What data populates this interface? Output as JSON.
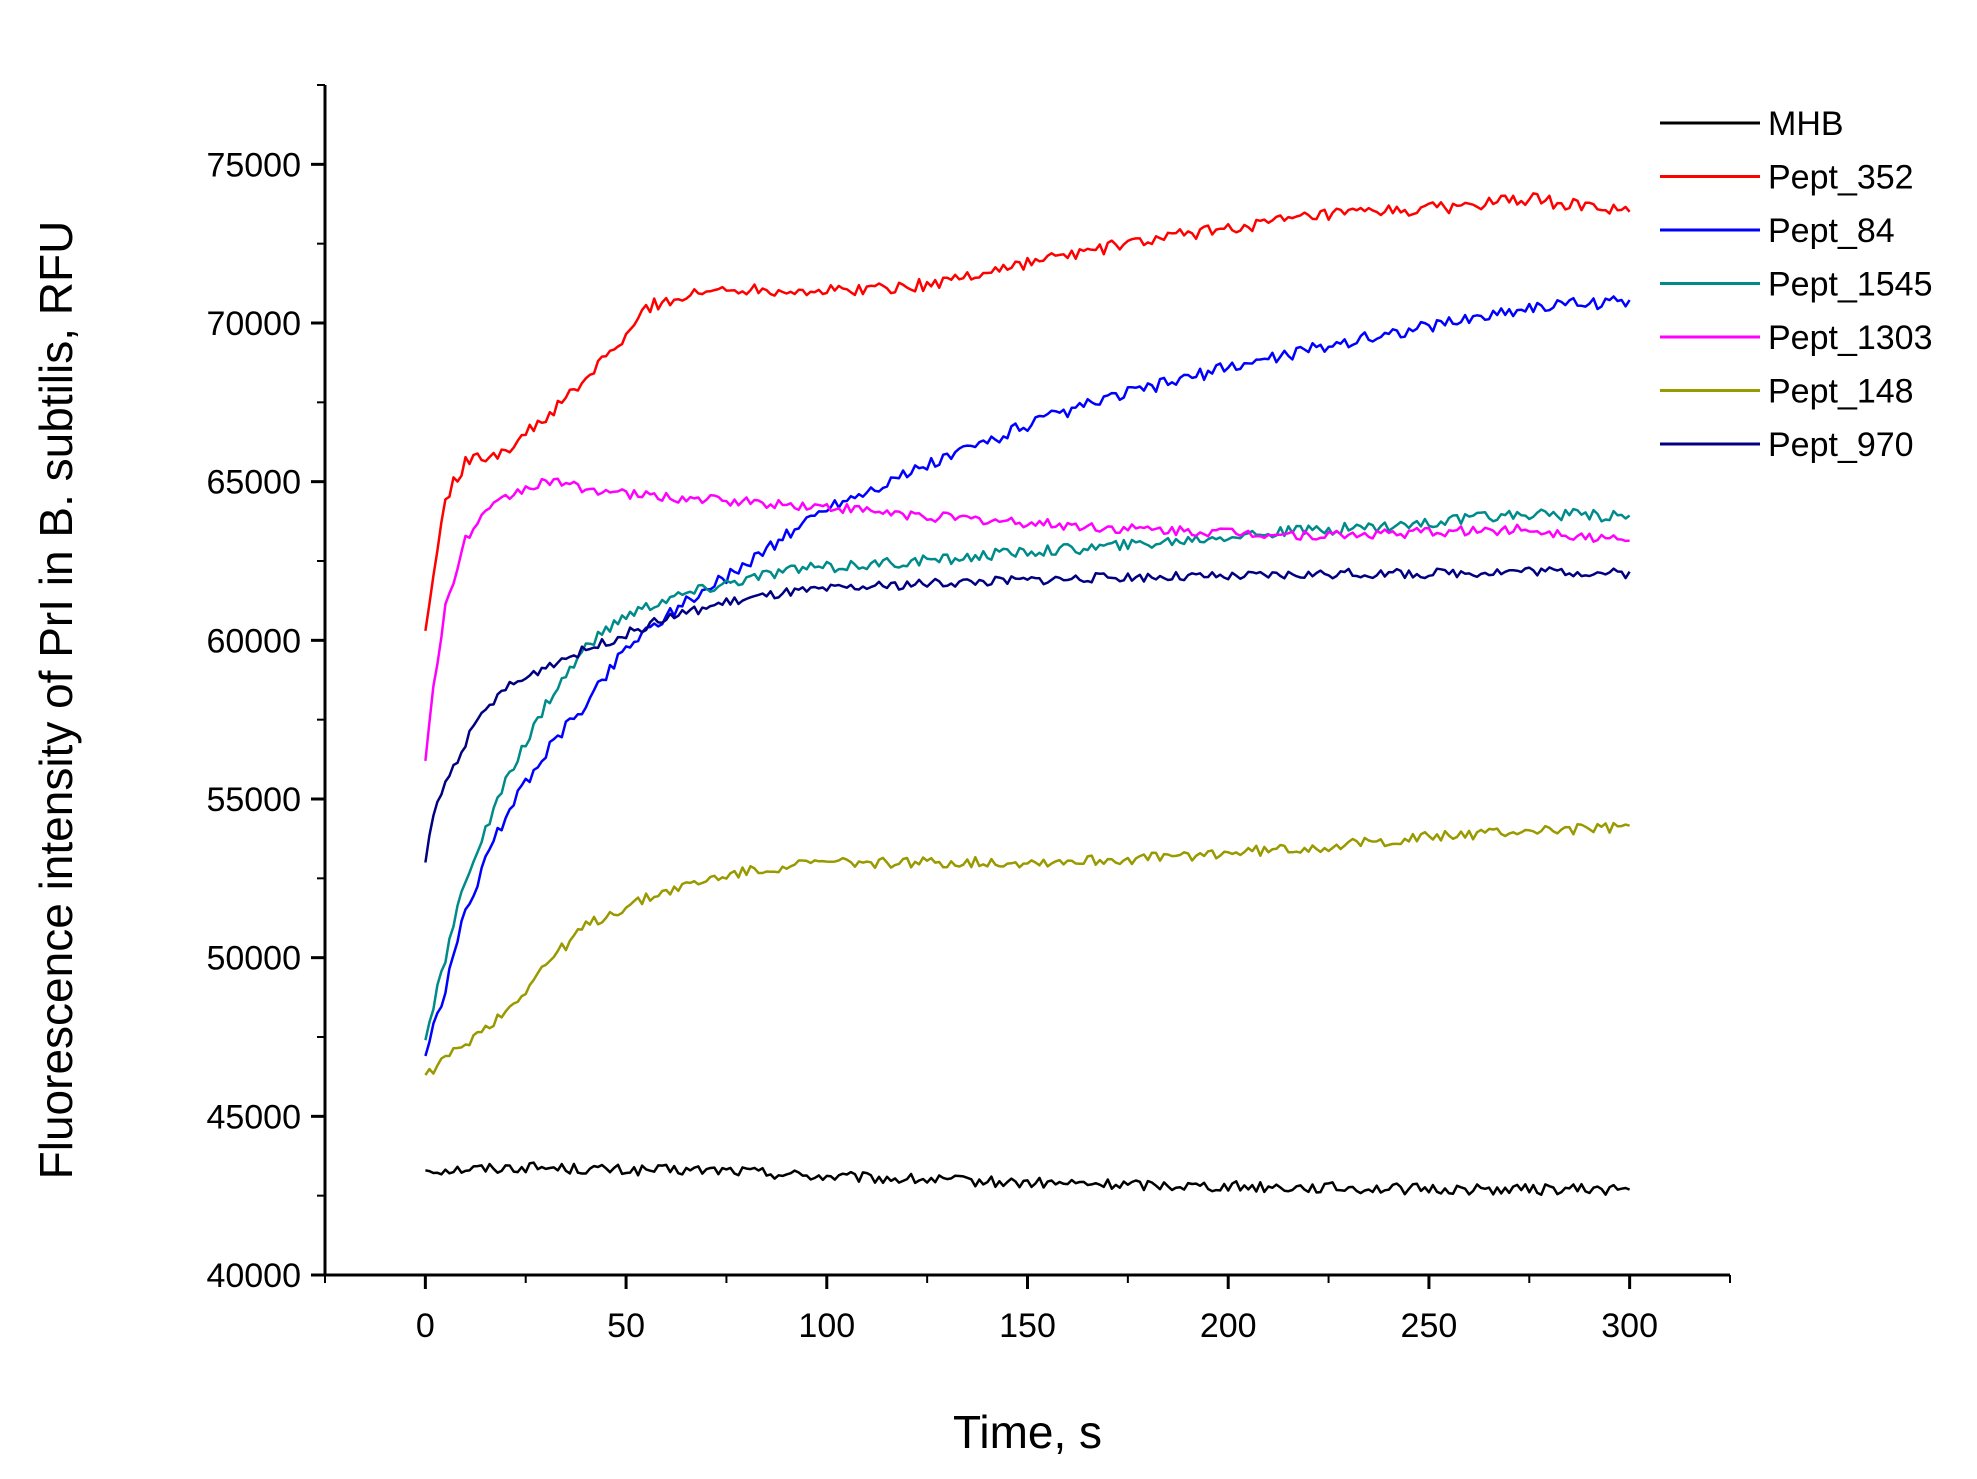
{
  "chart_data": {
    "type": "line",
    "title": "",
    "xlabel": "Time, s",
    "ylabel": "Fluorescence intensity of PrI in B. subtilis, RFU",
    "xlim": [
      -25,
      325
    ],
    "ylim": [
      40000,
      77500
    ],
    "xticks": [
      0,
      50,
      100,
      150,
      200,
      250,
      300
    ],
    "yticks": [
      40000,
      45000,
      50000,
      55000,
      60000,
      65000,
      70000,
      75000
    ],
    "xtick_labels": [
      "0",
      "50",
      "100",
      "150",
      "200",
      "250",
      "300"
    ],
    "ytick_labels": [
      "40000",
      "45000",
      "50000",
      "55000",
      "60000",
      "65000",
      "70000",
      "75000"
    ],
    "grid": false,
    "legend": "top-right",
    "series": [
      {
        "name": "MHB",
        "color": "#000000",
        "x": [
          0,
          25,
          50,
          75,
          100,
          150,
          200,
          250,
          300
        ],
        "y": [
          43300,
          43400,
          43300,
          43300,
          43100,
          42900,
          42800,
          42700,
          42700
        ]
      },
      {
        "name": "Pept_352",
        "color": "#ff0000",
        "x": [
          0,
          2,
          5,
          10,
          15,
          20,
          30,
          40,
          45,
          50,
          55,
          60,
          75,
          100,
          125,
          150,
          175,
          200,
          225,
          250,
          275,
          300
        ],
        "y": [
          60300,
          62000,
          64500,
          65600,
          65800,
          66000,
          67000,
          68200,
          69000,
          69500,
          70500,
          70700,
          71100,
          71000,
          71200,
          71900,
          72500,
          73000,
          73400,
          73600,
          73900,
          73500
        ]
      },
      {
        "name": "Pept_84",
        "color": "#0000ff",
        "x": [
          0,
          5,
          10,
          20,
          30,
          40,
          50,
          60,
          75,
          90,
          100,
          110,
          125,
          150,
          175,
          200,
          225,
          250,
          275,
          300
        ],
        "y": [
          46900,
          49000,
          51500,
          54500,
          56500,
          58000,
          59800,
          60800,
          62000,
          63300,
          64200,
          64700,
          65500,
          66800,
          67800,
          68600,
          69300,
          69900,
          70500,
          70700
        ]
      },
      {
        "name": "Pept_1545",
        "color": "#008b8b",
        "x": [
          0,
          5,
          10,
          20,
          30,
          40,
          50,
          60,
          75,
          90,
          100,
          125,
          150,
          175,
          200,
          225,
          250,
          275,
          300
        ],
        "y": [
          47400,
          50000,
          52500,
          55500,
          58000,
          59800,
          60800,
          61300,
          61800,
          62200,
          62300,
          62500,
          62800,
          63000,
          63300,
          63500,
          63700,
          64000,
          63900
        ]
      },
      {
        "name": "Pept_1303",
        "color": "#ff00ff",
        "x": [
          0,
          2,
          5,
          10,
          15,
          20,
          25,
          30,
          35,
          50,
          75,
          100,
          125,
          150,
          175,
          200,
          225,
          250,
          275,
          300
        ],
        "y": [
          56200,
          58500,
          61000,
          63200,
          64000,
          64500,
          64800,
          65000,
          64900,
          64600,
          64400,
          64200,
          63900,
          63700,
          63500,
          63400,
          63300,
          63400,
          63500,
          63100
        ]
      },
      {
        "name": "Pept_148",
        "color": "#999900",
        "x": [
          0,
          5,
          10,
          20,
          25,
          30,
          40,
          50,
          60,
          75,
          90,
          100,
          125,
          150,
          175,
          200,
          225,
          250,
          275,
          300
        ],
        "y": [
          46300,
          46800,
          47300,
          48300,
          49000,
          49800,
          51000,
          51600,
          52100,
          52600,
          52900,
          53000,
          53000,
          53000,
          53100,
          53300,
          53500,
          53800,
          54000,
          54100
        ]
      },
      {
        "name": "Pept_970",
        "color": "#000080",
        "x": [
          0,
          2,
          5,
          10,
          15,
          20,
          25,
          30,
          40,
          50,
          60,
          75,
          90,
          100,
          125,
          150,
          175,
          200,
          225,
          250,
          275,
          300
        ],
        "y": [
          53000,
          54500,
          55500,
          56800,
          57800,
          58500,
          58800,
          59200,
          59700,
          60200,
          60700,
          61200,
          61500,
          61600,
          61800,
          61900,
          62000,
          62000,
          62100,
          62100,
          62200,
          62100
        ]
      }
    ]
  }
}
